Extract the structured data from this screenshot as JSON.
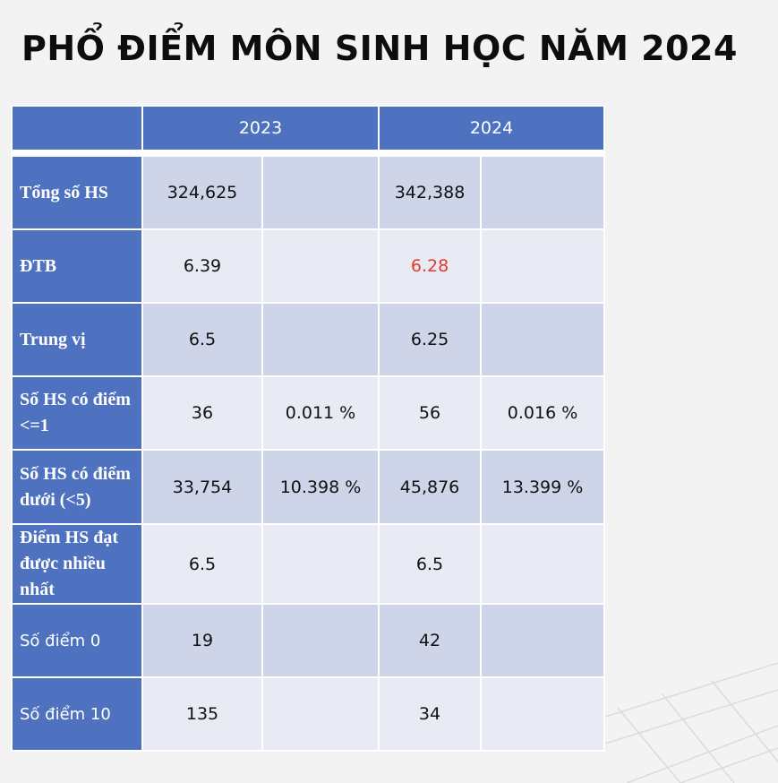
{
  "title": "PHỔ ĐIỂM MÔN SINH HỌC NĂM 2024",
  "table": {
    "years": [
      "2023",
      "2024"
    ],
    "rows": [
      {
        "label": "Tổng số HS",
        "v2023": "324,625",
        "p2023": "",
        "v2024": "342,388",
        "p2024": ""
      },
      {
        "label": "ĐTB",
        "v2023": "6.39",
        "p2023": "",
        "v2024": "6.28",
        "p2024": ""
      },
      {
        "label": "Trung vị",
        "v2023": "6.5",
        "p2023": "",
        "v2024": "6.25",
        "p2024": ""
      },
      {
        "label": "Số HS có điểm <=1",
        "v2023": "36",
        "p2023": "0.011 %",
        "v2024": "56",
        "p2024": "0.016 %"
      },
      {
        "label": "Số HS có điểm dưới (<5)",
        "v2023": "33,754",
        "p2023": "10.398 %",
        "v2024": "45,876",
        "p2024": "13.399 %"
      },
      {
        "label": "Điểm HS đạt được nhiều nhất",
        "v2023": "6.5",
        "p2023": "",
        "v2024": "6.5",
        "p2024": ""
      },
      {
        "label": "Số điểm 0",
        "v2023": "19",
        "p2023": "",
        "v2024": "42",
        "p2024": ""
      },
      {
        "label": "Số điểm 10",
        "v2023": "135",
        "p2023": "",
        "v2024": "34",
        "p2024": ""
      }
    ]
  },
  "colors": {
    "header_bg": "#4f72c0",
    "row_dark": "#cfd5e9",
    "row_light": "#e8ebf4",
    "highlight": "#e53a2e"
  }
}
